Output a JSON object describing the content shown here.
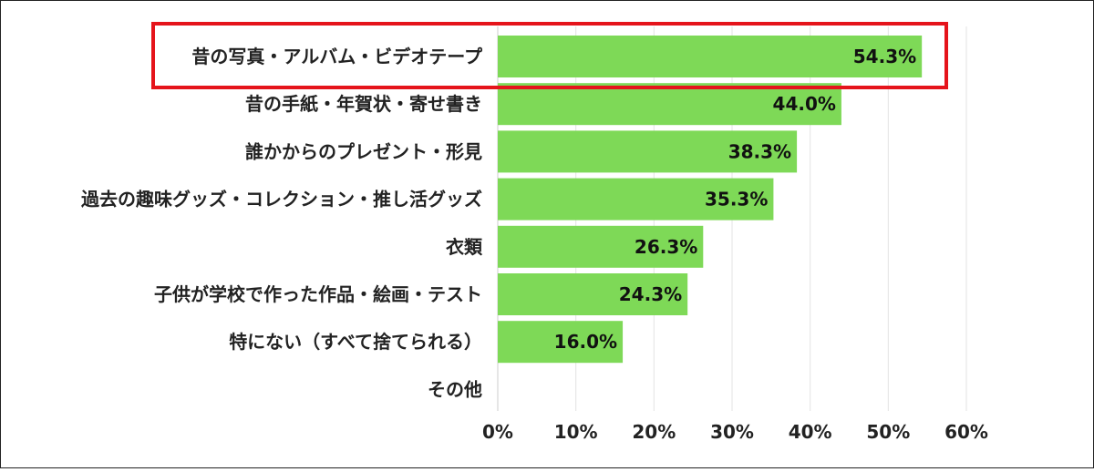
{
  "chart_data": {
    "type": "bar",
    "orientation": "horizontal",
    "categories": [
      "昔の写真・アルバム・ビデオテープ",
      "昔の手紙・年賀状・寄せ書き",
      "誰かからのプレゼント・形見",
      "過去の趣味グッズ・コレクション・推し活グッズ",
      "衣類",
      "子供が学校で作った作品・絵画・テスト",
      "特にない（すべて捨てられる）",
      "その他"
    ],
    "values": [
      54.3,
      44.0,
      38.3,
      35.3,
      26.3,
      24.3,
      16.0,
      0
    ],
    "value_labels": [
      "54.3%",
      "44.0%",
      "38.3%",
      "35.3%",
      "26.3%",
      "24.3%",
      "16.0%",
      ""
    ],
    "xlim": [
      0,
      60
    ],
    "xticks": [
      0,
      10,
      20,
      30,
      40,
      50,
      60
    ],
    "xtick_labels": [
      "0%",
      "10%",
      "20%",
      "30%",
      "40%",
      "50%",
      "60%"
    ],
    "highlighted_category_index": 0,
    "grid": "vertical",
    "colors": {
      "bar": "#7ed957",
      "highlight_border": "#e5141b",
      "grid": "#e3e3e3",
      "text": "#222222"
    }
  }
}
